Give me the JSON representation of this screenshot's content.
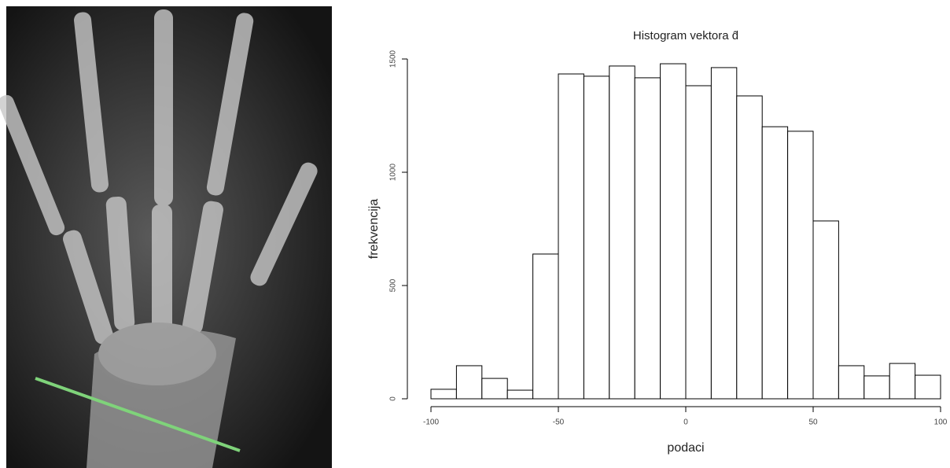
{
  "chart_data": {
    "type": "histogram",
    "title": "Histogram vektora d̂",
    "xlabel": "podaci",
    "ylabel": "frekvencija",
    "bins": [
      -100,
      -90,
      -80,
      -70,
      -60,
      -50,
      -40,
      -30,
      -20,
      -10,
      0,
      10,
      20,
      30,
      40,
      50,
      60,
      70,
      80,
      90,
      100
    ],
    "counts": [
      42,
      146,
      90,
      38,
      639,
      1434,
      1424,
      1469,
      1417,
      1479,
      1382,
      1462,
      1337,
      1201,
      1181,
      785,
      146,
      101,
      156,
      104
    ],
    "xlim": [
      -100,
      100
    ],
    "xticks": [
      -100,
      -50,
      0,
      50,
      100
    ],
    "ylim": [
      0,
      1500
    ],
    "yticks": [
      0,
      500,
      1000,
      1500
    ],
    "color": "#ffffff",
    "edgecolor": "#000000",
    "grid": false
  }
}
